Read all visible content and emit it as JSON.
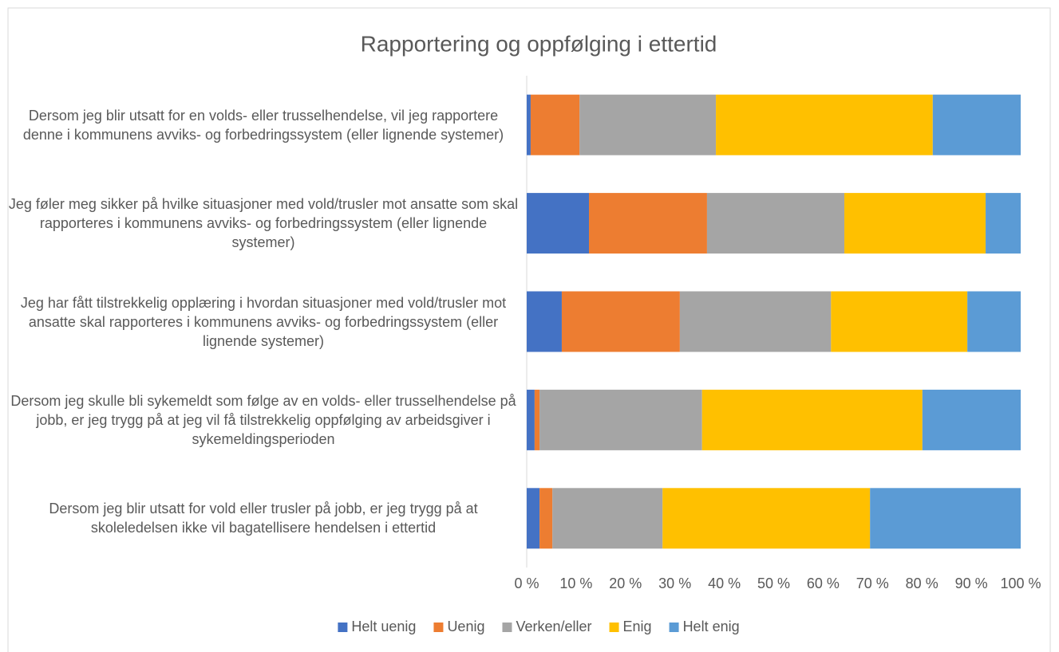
{
  "chart_data": {
    "type": "stacked_barh",
    "title": "Rapportering og oppfølging i ettertid",
    "categories": [
      "Dersom jeg blir utsatt for en volds- eller trusselhendelse, vil jeg rapportere denne i kommunens avviks- og forbedringssystem (eller lignende systemer)",
      "Jeg føler meg sikker på hvilke situasjoner med vold/trusler mot ansatte som skal rapporteres i kommunens avviks- og forbedringssystem (eller lignende systemer)",
      "Jeg har fått tilstrekkelig opplæring i hvordan situasjoner med vold/trusler mot ansatte skal rapporteres i kommunens avviks- og forbedringssystem (eller lignende systemer)",
      "Dersom jeg skulle bli sykemeldt som følge av en volds- eller trusselhendelse på jobb, er jeg trygg på at jeg vil få tilstrekkelig oppfølging av arbeidsgiver i sykemeldingsperioden",
      "Dersom jeg blir utsatt for vold eller trusler på jobb, er jeg trygg på at skoleledelsen ikke vil bagatellisere hendelsen i ettertid"
    ],
    "series": [
      {
        "name": "Helt uenig",
        "color": "#4472c4",
        "values": [
          0.8,
          12.6,
          7.1,
          1.6,
          2.6
        ]
      },
      {
        "name": "Uenig",
        "color": "#ed7d31",
        "values": [
          9.9,
          23.9,
          23.9,
          1.0,
          2.6
        ]
      },
      {
        "name": "Verken/eller",
        "color": "#a5a5a5",
        "values": [
          27.6,
          27.8,
          30.6,
          32.9,
          22.3
        ]
      },
      {
        "name": "Enig",
        "color": "#ffc000",
        "values": [
          43.9,
          28.6,
          27.6,
          44.6,
          42.0
        ]
      },
      {
        "name": "Helt enig",
        "color": "#5b9bd5",
        "values": [
          17.8,
          7.1,
          10.8,
          19.9,
          30.5
        ]
      }
    ],
    "xlim": [
      0,
      100
    ],
    "xticks": [
      {
        "value": 0,
        "label": "0 %"
      },
      {
        "value": 10,
        "label": "10 %"
      },
      {
        "value": 20,
        "label": "20 %"
      },
      {
        "value": 30,
        "label": "30 %"
      },
      {
        "value": 40,
        "label": "40 %"
      },
      {
        "value": 50,
        "label": "50 %"
      },
      {
        "value": 60,
        "label": "60 %"
      },
      {
        "value": 70,
        "label": "70 %"
      },
      {
        "value": 80,
        "label": "80 %"
      },
      {
        "value": 90,
        "label": "90 %"
      },
      {
        "value": 100,
        "label": "100 %"
      }
    ],
    "grid": false,
    "legend": "bottom"
  }
}
